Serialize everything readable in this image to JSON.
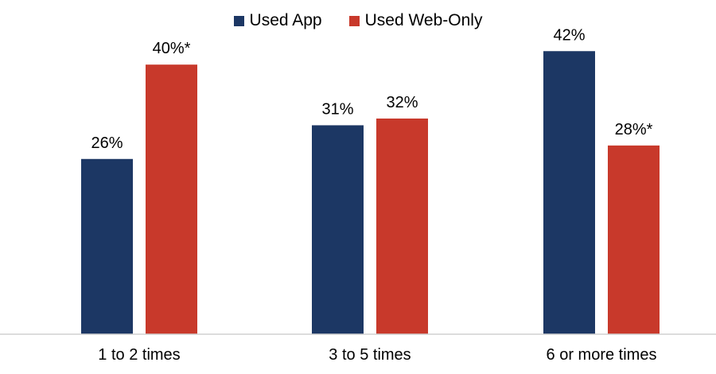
{
  "chart_data": {
    "type": "bar",
    "categories": [
      "1 to 2 times",
      "3 to 5 times",
      "6 or more times"
    ],
    "series": [
      {
        "name": "Used App",
        "color": "#1c3764",
        "values": [
          26,
          31,
          42
        ],
        "labels": [
          "26%",
          "31%",
          "42%"
        ]
      },
      {
        "name": "Used Web-Only",
        "color": "#c8392b",
        "values": [
          40,
          32,
          28
        ],
        "labels": [
          "40%*",
          "32%",
          "28%*"
        ]
      }
    ],
    "title": "",
    "xlabel": "",
    "ylabel": "",
    "ylim": [
      0,
      45
    ],
    "grid": false,
    "legend": "top-center"
  }
}
